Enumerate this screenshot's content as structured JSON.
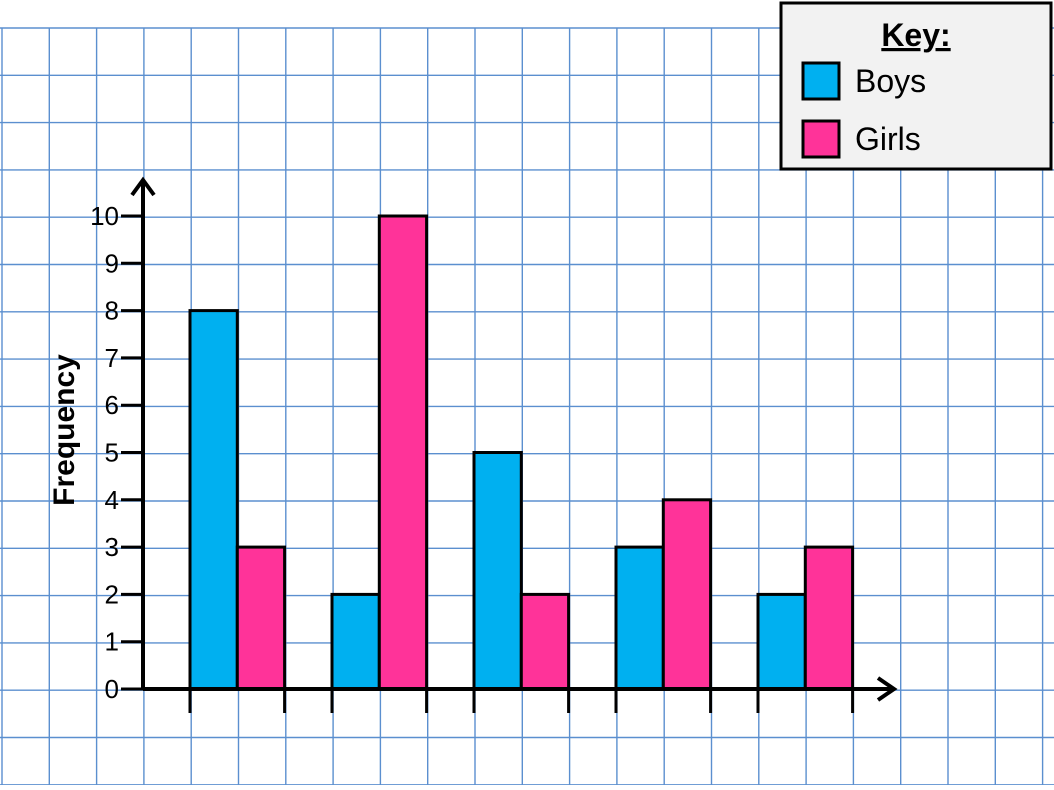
{
  "chart_data": {
    "type": "bar",
    "title": "",
    "xlabel": "",
    "ylabel": "Frequency",
    "ylim": [
      0,
      10
    ],
    "yticks": [
      0,
      1,
      2,
      3,
      4,
      5,
      6,
      7,
      8,
      9,
      10
    ],
    "categories": [
      "",
      "",
      "",
      "",
      ""
    ],
    "series": [
      {
        "name": "Boys",
        "color": "#00B0F0",
        "values": [
          8,
          2,
          5,
          3,
          2
        ]
      },
      {
        "name": "Girls",
        "color": "#FF3399",
        "values": [
          3,
          10,
          2,
          4,
          3
        ]
      }
    ],
    "grid": true,
    "grid_color": "#5B8FCF",
    "legend": {
      "title": "Key:",
      "position": "top-right"
    }
  }
}
